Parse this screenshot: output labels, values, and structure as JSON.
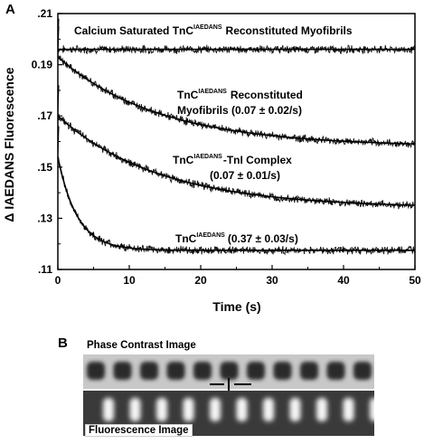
{
  "panels": {
    "a_label": "A",
    "b_label": "B"
  },
  "chart_data": {
    "type": "line",
    "xlabel": "Time (s)",
    "ylabel": "Δ IAEDANS Fluorescence",
    "xlim": [
      0,
      50
    ],
    "ylim": [
      0.11,
      0.21
    ],
    "xticks": [
      "0",
      "10",
      "20",
      "30",
      "40",
      "50"
    ],
    "yticks": [
      ".11",
      ".13",
      ".15",
      ".17",
      "0.19",
      ".21"
    ],
    "grid": false,
    "series": [
      {
        "name": "Calcium Saturated TnC IAEDANS Reconstituted Myofibrils",
        "kind": "flat",
        "y0": 0.196,
        "plateau": 0.196,
        "rate": 0
      },
      {
        "name": "TnC IAEDANS Reconstituted Myofibrils",
        "rate_label": "(0.07 ± 0.02/s)",
        "kind": "decay",
        "y0": 0.193,
        "plateau": 0.158,
        "rate": 0.07
      },
      {
        "name": "TnC IAEDANS -TnI Complex",
        "rate_label": "(0.07 ± 0.01/s)",
        "kind": "decay",
        "y0": 0.17,
        "plateau": 0.134,
        "rate": 0.07
      },
      {
        "name": "TnC IAEDANS",
        "rate_label": "(0.37 ± 0.03/s)",
        "kind": "decay",
        "y0": 0.154,
        "plateau": 0.1175,
        "rate": 0.37
      }
    ]
  },
  "annotations": {
    "s1_prefix": "Calcium Saturated TnC",
    "s1_sup": "IAEDANS",
    "s1_suffix": "Reconstituted Myofibrils",
    "s2_prefix": "TnC",
    "s2_sup": "IAEDANS",
    "s2_suffix": "Reconstituted",
    "s2_line2": "Myofibrils (0.07 ± 0.02/s)",
    "s3_prefix": "TnC",
    "s3_sup": "IAEDANS",
    "s3_suffix": "-TnI Complex",
    "s3_line2": "(0.07 ± 0.01/s)",
    "s4_prefix": "TnC",
    "s4_sup": "IAEDANS",
    "s4_suffix": "(0.37 ± 0.03/s)"
  },
  "micrograph": {
    "phase_label": "Phase Contrast Image",
    "fluor_label": "Fluorescence Image",
    "sarcomere_marker": "—I—"
  }
}
